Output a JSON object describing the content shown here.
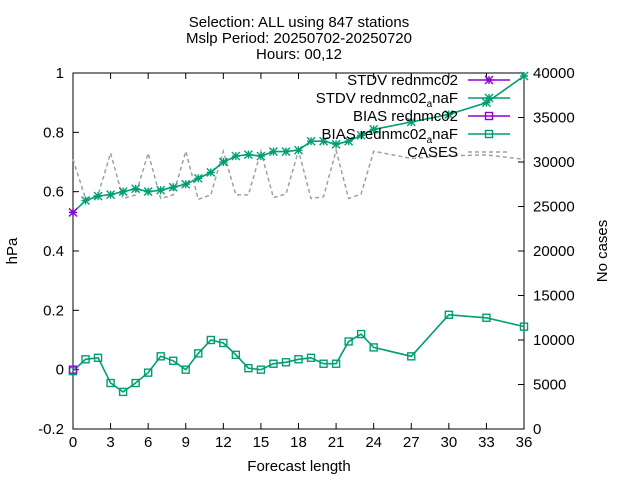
{
  "chart_data": {
    "type": "line",
    "title_lines": [
      "Selection: ALL using   847 stations",
      "Mslp   Period: 20250702-20250720",
      "Hours: 00,12"
    ],
    "xlabel": "Forecast length",
    "ylabel": "hPa",
    "y2label": "No cases",
    "xlim": [
      0,
      36
    ],
    "ylim": [
      -0.2,
      1.0
    ],
    "y2lim": [
      0,
      40000
    ],
    "xticks": [
      0,
      3,
      6,
      9,
      12,
      15,
      18,
      21,
      24,
      27,
      30,
      33,
      36
    ],
    "yticks": [
      -0.2,
      0,
      0.2,
      0.4,
      0.6,
      0.8,
      1.0
    ],
    "ytick_labels": [
      "-0.2",
      "0",
      "0.2",
      "0.4",
      "0.6",
      "0.8",
      "1"
    ],
    "y2ticks": [
      0,
      5000,
      10000,
      15000,
      20000,
      25000,
      30000,
      35000,
      40000
    ],
    "grid": false,
    "legend_position": "top-right",
    "series": [
      {
        "name": "STDV rednmc02",
        "axis": "y1",
        "color": "#9400d3",
        "marker": "star",
        "x": [
          0
        ],
        "y": [
          0.53
        ]
      },
      {
        "name": "STDV rednmc02",
        "name_sub": "a",
        "name_tail": "naF",
        "axis": "y1",
        "color": "#009e73",
        "marker": "star",
        "x": [
          0,
          1,
          2,
          3,
          4,
          5,
          6,
          7,
          8,
          9,
          10,
          11,
          12,
          13,
          14,
          15,
          16,
          17,
          18,
          19,
          20,
          21,
          22,
          23,
          24,
          27,
          30,
          33,
          36
        ],
        "y": [
          0.53,
          0.57,
          0.585,
          0.59,
          0.6,
          0.61,
          0.6,
          0.605,
          0.615,
          0.625,
          0.645,
          0.665,
          0.7,
          0.72,
          0.725,
          0.72,
          0.735,
          0.735,
          0.74,
          0.77,
          0.77,
          0.76,
          0.77,
          0.79,
          0.81,
          0.835,
          0.86,
          0.9,
          0.99
        ]
      },
      {
        "name": "BIAS rednmc02",
        "axis": "y1",
        "color": "#9400d3",
        "marker": "square",
        "x": [
          0
        ],
        "y": [
          0.0
        ]
      },
      {
        "name": "BIAS rednmc02",
        "name_sub": "a",
        "name_tail": "naF",
        "axis": "y1",
        "color": "#009e73",
        "marker": "square",
        "x": [
          0,
          1,
          2,
          3,
          4,
          5,
          6,
          7,
          8,
          9,
          10,
          11,
          12,
          13,
          14,
          15,
          16,
          17,
          18,
          19,
          20,
          21,
          22,
          23,
          24,
          27,
          30,
          33,
          36
        ],
        "y": [
          -0.005,
          0.035,
          0.04,
          -0.045,
          -0.075,
          -0.045,
          -0.01,
          0.045,
          0.03,
          0.0,
          0.055,
          0.1,
          0.09,
          0.05,
          0.005,
          0.0,
          0.02,
          0.025,
          0.035,
          0.04,
          0.02,
          0.02,
          0.095,
          0.12,
          0.075,
          0.045,
          0.185,
          0.175,
          0.145
        ]
      },
      {
        "name": "CASES",
        "axis": "y2",
        "color": "#a0a0a0",
        "dashed": true,
        "x": [
          0,
          1,
          2,
          3,
          4,
          5,
          6,
          7,
          8,
          9,
          10,
          11,
          12,
          13,
          14,
          15,
          16,
          17,
          18,
          19,
          20,
          21,
          22,
          23,
          24,
          27,
          30,
          33,
          36
        ],
        "y": [
          30300,
          25900,
          26300,
          31000,
          25900,
          26300,
          31000,
          25900,
          26300,
          31200,
          25800,
          26300,
          31200,
          26300,
          26300,
          31200,
          26000,
          26400,
          31300,
          25900,
          26100,
          31300,
          25900,
          26400,
          31200,
          30400,
          30700,
          30800,
          30300
        ]
      }
    ]
  }
}
